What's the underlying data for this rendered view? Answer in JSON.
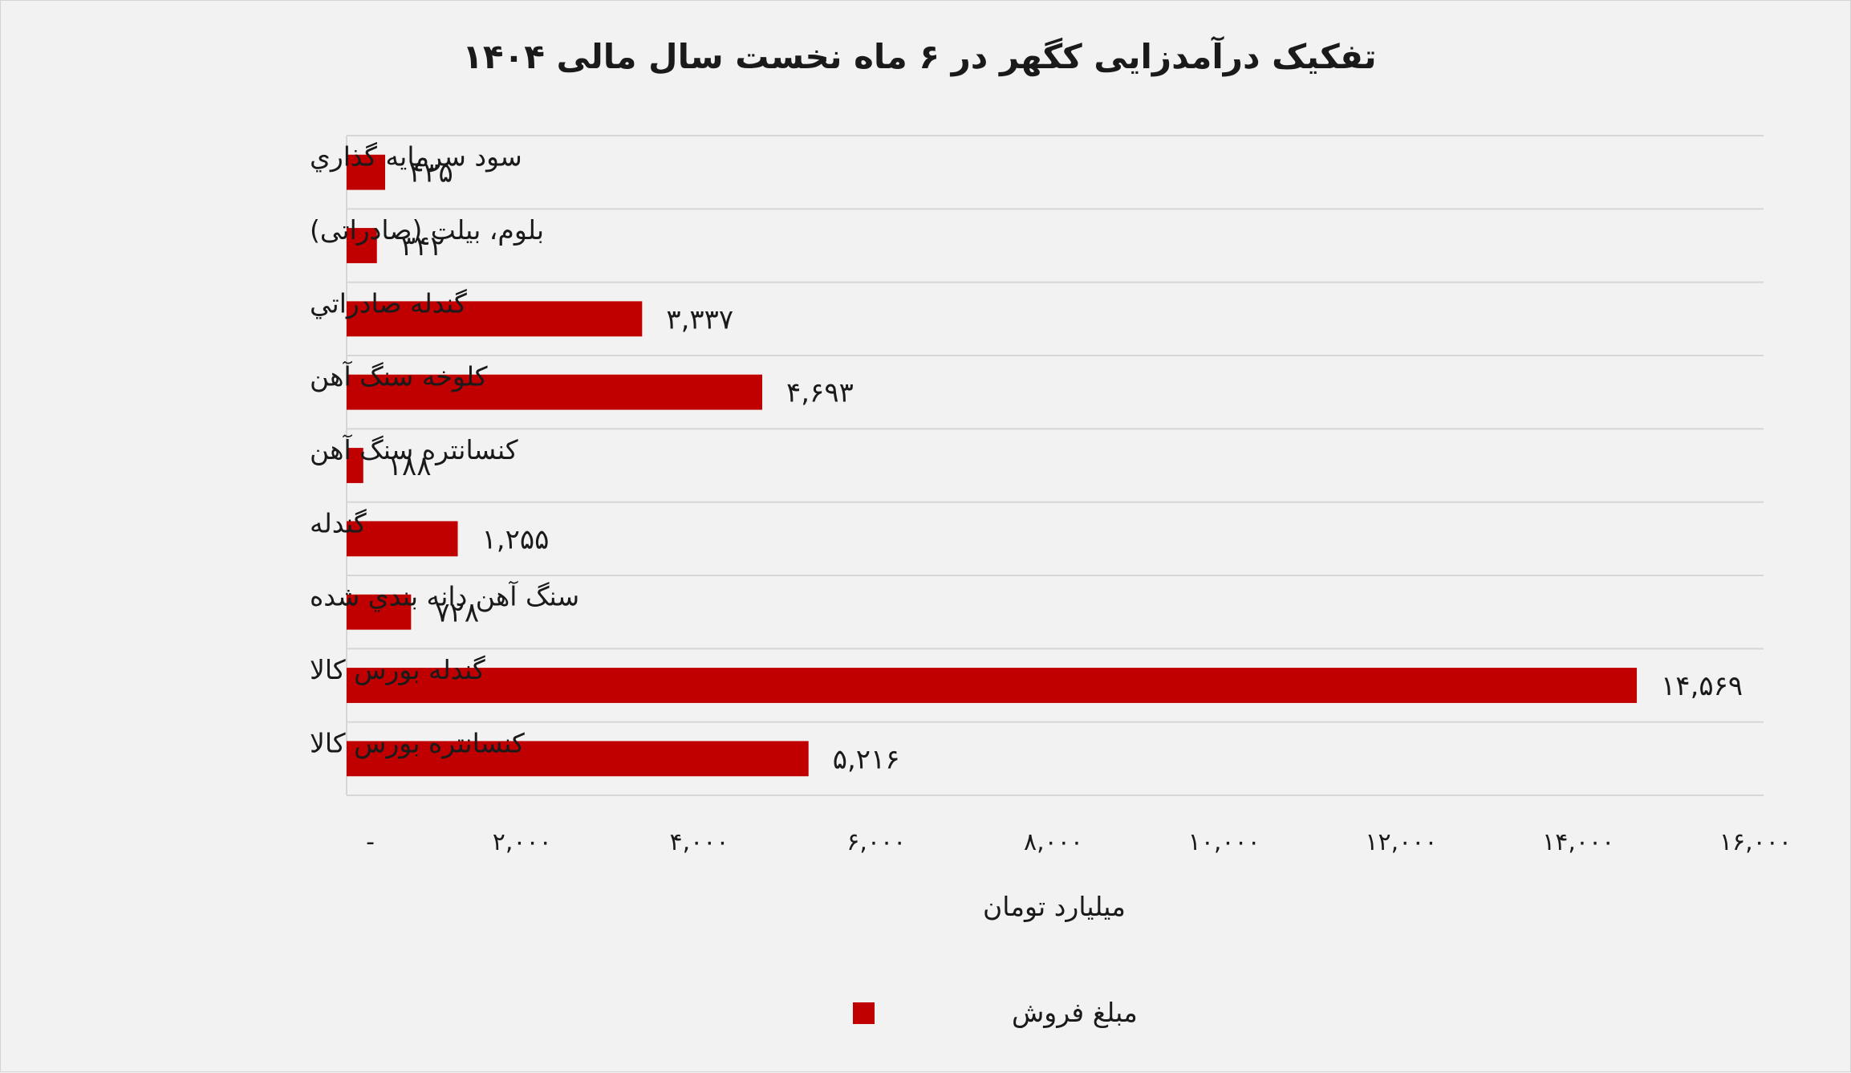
{
  "chart_data": {
    "type": "bar",
    "orientation": "horizontal",
    "title": "تفکیک درآمدزایی کگهر در ۶ ماه نخست سال مالی  ۱۴۰۴",
    "xlabel": "میلیارد تومان",
    "ylabel": "",
    "xlim": [
      0,
      16000
    ],
    "x_ticks": [
      0,
      2000,
      4000,
      6000,
      8000,
      10000,
      12000,
      14000,
      16000
    ],
    "x_tick_labels": [
      "-",
      "۲,۰۰۰",
      "۴,۰۰۰",
      "۶,۰۰۰",
      "۸,۰۰۰",
      "۱۰,۰۰۰",
      "۱۲,۰۰۰",
      "۱۴,۰۰۰",
      "۱۶,۰۰۰"
    ],
    "grid": "horizontal",
    "legend_position": "bottom",
    "categories": [
      "سود سرمایه گذاري",
      "بلوم، بیلت (صادراتی)",
      "گندله صادراتي",
      "کلوخه سنگ آهن",
      "کنسانتره سنگ آهن",
      "گندله",
      "سنگ آهن دانه بندي شده",
      "گندله بورس کالا",
      "کنسانتره بورس کالا"
    ],
    "series": [
      {
        "name": "مبلغ فروش",
        "color": "#c00000",
        "values": [
          435,
          342,
          3337,
          4693,
          188,
          1255,
          728,
          14569,
          5216
        ],
        "value_labels": [
          "۴۳۵",
          "۳۴۲",
          "۳,۳۳۷",
          "۴,۶۹۳",
          "۱۸۸",
          "۱,۲۵۵",
          "۷۲۸",
          "۱۴,۵۶۹",
          "۵,۲۱۶"
        ]
      }
    ]
  }
}
